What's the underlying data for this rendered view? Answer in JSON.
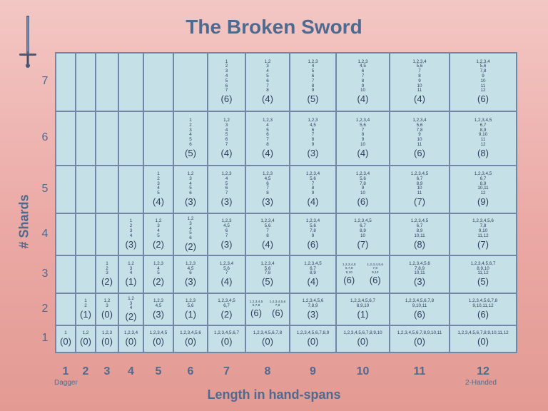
{
  "title": "The Broken Sword",
  "axis": {
    "x_title": "Length in hand-spans",
    "y_title": "# Shards",
    "x_labels": [
      "1",
      "2",
      "3",
      "4",
      "5",
      "6",
      "7",
      "8",
      "9",
      "10",
      "11",
      "12"
    ],
    "y_labels": [
      "1",
      "2",
      "3",
      "4",
      "5",
      "6",
      "7"
    ],
    "x_left_note": "Dagger",
    "x_right_note": "2-Handed"
  },
  "colors": {
    "cell": "#c5e0e7",
    "border": "#7286a6",
    "text": "#2d3f5c",
    "title": "#4f6a8f"
  },
  "icons": {
    "corner": "sword-icon"
  },
  "cells": [
    {
      "row": 1,
      "col": 1,
      "lines": "1",
      "count": "(0)"
    },
    {
      "row": 1,
      "col": 2,
      "lines": "1,2",
      "count": "(0)"
    },
    {
      "row": 1,
      "col": 3,
      "lines": "1,2,3",
      "count": "(0)"
    },
    {
      "row": 1,
      "col": 4,
      "lines": "1,2,3,4",
      "count": "(0)"
    },
    {
      "row": 1,
      "col": 5,
      "lines": "1,2,3,4,5",
      "count": "(0)"
    },
    {
      "row": 1,
      "col": 6,
      "lines": "1,2,3,4,5,6",
      "count": "(0)"
    },
    {
      "row": 1,
      "col": 7,
      "lines": "1,2,3,4,5,6,7",
      "count": "(0)"
    },
    {
      "row": 1,
      "col": 8,
      "lines": "1,2,3,4,5,6,7,8",
      "count": "(0)"
    },
    {
      "row": 1,
      "col": 9,
      "lines": "1,2,3,4,5,6,7,8,9",
      "count": "(0)"
    },
    {
      "row": 1,
      "col": 10,
      "lines": "1,2,3,4,5,6,7,8,9,10",
      "count": "(0)"
    },
    {
      "row": 1,
      "col": 11,
      "lines": "1,2,3,4,5,6,7,8,9,10,11",
      "count": "(0)"
    },
    {
      "row": 1,
      "col": 12,
      "lines": "1,2,3,4,5,6,7,8,9,10,11,12",
      "count": "(0)"
    },
    {
      "row": 2,
      "col": 2,
      "lines": "1\n2",
      "count": "(1)"
    },
    {
      "row": 2,
      "col": 3,
      "lines": "1,2\n3",
      "count": "(0)"
    },
    {
      "row": 2,
      "col": 4,
      "lines": "1,2\n3\n4",
      "count": "(2)"
    },
    {
      "row": 2,
      "col": 5,
      "lines": "1,2,3\n4,5",
      "count": "(3)"
    },
    {
      "row": 2,
      "col": 6,
      "lines": "1,2,3\n5,6",
      "count": "(1)"
    },
    {
      "row": 2,
      "col": 7,
      "lines": "1,2,3,4,5\n6,7",
      "count": "(2)"
    },
    {
      "row": 2,
      "col": 8,
      "split": [
        {
          "lines": "1,2,3,4,5\n6,7,8",
          "count": "(6)"
        },
        {
          "lines": "1,2,3,4,5,6\n7,8",
          "count": "(6)"
        }
      ]
    },
    {
      "row": 2,
      "col": 9,
      "lines": "1,2,3,4,5,6\n7,8,9",
      "count": "(3)"
    },
    {
      "row": 2,
      "col": 10,
      "lines": "1,2,3,4,5,6,7\n8,9,10",
      "count": "(1)"
    },
    {
      "row": 2,
      "col": 11,
      "lines": "1,2,3,4,5,6,7,8\n9,10,11",
      "count": "(6)"
    },
    {
      "row": 2,
      "col": 12,
      "lines": "1,2,3,4,5,6,7,8\n9,10,11,12",
      "count": "(6)"
    },
    {
      "row": 3,
      "col": 3,
      "lines": "1\n2\n3",
      "count": "(2)"
    },
    {
      "row": 3,
      "col": 4,
      "lines": "1,2\n3\n4",
      "count": "(1)"
    },
    {
      "row": 3,
      "col": 5,
      "lines": "1,2,3\n4\n5",
      "count": "(2)"
    },
    {
      "row": 3,
      "col": 6,
      "lines": "1,2,3\n4,5\n6",
      "count": "(3)"
    },
    {
      "row": 3,
      "col": 7,
      "lines": "1,2,3,4\n5,6\n7",
      "count": "(4)"
    },
    {
      "row": 3,
      "col": 8,
      "lines": "1,2,3,4\n5,6\n7,8",
      "count": "(5)"
    },
    {
      "row": 3,
      "col": 9,
      "lines": "1,2,3,4,5\n6,7\n8,9",
      "count": "(4)"
    },
    {
      "row": 3,
      "col": 10,
      "split": [
        {
          "lines": "1,2,3,4,5\n6,7,8\n9,10",
          "count": "(6)"
        },
        {
          "lines": "1,2,3,4,5,6\n7,8\n9,10",
          "count": "(6)"
        }
      ]
    },
    {
      "row": 3,
      "col": 11,
      "lines": "1,2,3,4,5,6\n7,8,9\n10,11",
      "count": "(3)"
    },
    {
      "row": 3,
      "col": 12,
      "lines": "1,2,3,4,5,6,7\n8,9,10\n11,12",
      "count": "(5)"
    },
    {
      "row": 4,
      "col": 4,
      "lines": "1\n2\n3\n4",
      "count": "(3)"
    },
    {
      "row": 4,
      "col": 5,
      "lines": "1,2\n3\n4\n5",
      "count": "(2)"
    },
    {
      "row": 4,
      "col": 6,
      "lines": "1,2\n3\n4\n5\n6",
      "count": "(2)"
    },
    {
      "row": 4,
      "col": 7,
      "lines": "1,2,3\n4,5\n6\n7",
      "count": "(3)"
    },
    {
      "row": 4,
      "col": 8,
      "lines": "1,2,3,4\n5,6\n7\n8",
      "count": "(4)"
    },
    {
      "row": 4,
      "col": 9,
      "lines": "1,2,3,4\n5,6\n7,8\n9",
      "count": "(6)"
    },
    {
      "row": 4,
      "col": 10,
      "lines": "1,2,3,4,5\n6,7\n8,9\n10",
      "count": "(7)"
    },
    {
      "row": 4,
      "col": 11,
      "lines": "1,2,3,4,5\n6,7\n8,9\n10,11",
      "count": "(8)"
    },
    {
      "row": 4,
      "col": 12,
      "lines": "1,2,3,4,5,6\n7,8\n9,10\n11,12",
      "count": "(7)"
    },
    {
      "row": 5,
      "col": 5,
      "lines": "1\n2\n3\n4\n5",
      "count": "(4)"
    },
    {
      "row": 5,
      "col": 6,
      "lines": "1,2\n3\n4\n5\n6",
      "count": "(3)"
    },
    {
      "row": 5,
      "col": 7,
      "lines": "1,2,3\n4\n5\n6\n7",
      "count": "(3)"
    },
    {
      "row": 5,
      "col": 8,
      "lines": "1,2,3\n4,5\n6\n7\n8",
      "count": "(3)"
    },
    {
      "row": 5,
      "col": 9,
      "lines": "1,2,3,4\n5,6\n7\n8\n9",
      "count": "(4)"
    },
    {
      "row": 5,
      "col": 10,
      "lines": "1,2,3,4\n5,6\n7,8\n9\n10",
      "count": "(6)"
    },
    {
      "row": 5,
      "col": 11,
      "lines": "1,2,3,4,5\n6,7\n8,9\n10\n11",
      "count": "(7)"
    },
    {
      "row": 5,
      "col": 12,
      "lines": "1,2,3,4,5\n6,7\n8,9\n10,11\n12",
      "count": "(9)"
    },
    {
      "row": 6,
      "col": 6,
      "lines": "1\n2\n3\n4\n5\n6",
      "count": "(5)"
    },
    {
      "row": 6,
      "col": 7,
      "lines": "1,2\n3\n4\n5\n6\n7",
      "count": "(4)"
    },
    {
      "row": 6,
      "col": 8,
      "lines": "1,2,3\n4\n5\n6\n7\n8",
      "count": "(4)"
    },
    {
      "row": 6,
      "col": 9,
      "lines": "1,2,3\n4,5\n6\n7\n8\n9",
      "count": "(3)"
    },
    {
      "row": 6,
      "col": 10,
      "lines": "1,2,3,4\n5,6\n7\n8\n9\n10",
      "count": "(4)"
    },
    {
      "row": 6,
      "col": 11,
      "lines": "1,2,3,4\n5,6\n7,8\n9\n10\n11",
      "count": "(6)"
    },
    {
      "row": 6,
      "col": 12,
      "lines": "1,2,3,4,5\n6,7\n8,9\n9,10\n11\n12",
      "count": "(8)"
    },
    {
      "row": 7,
      "col": 7,
      "lines": "1\n2\n3\n4\n5\n6\n7",
      "count": "(6)"
    },
    {
      "row": 7,
      "col": 8,
      "lines": "1,2\n3\n4\n5\n6\n7\n8",
      "count": "(4)"
    },
    {
      "row": 7,
      "col": 9,
      "lines": "1,2,3\n4\n5\n6\n7\n8\n9",
      "count": "(5)"
    },
    {
      "row": 7,
      "col": 10,
      "lines": "1,2,3\n4,5\n6\n7\n8\n9\n10",
      "count": "(4)"
    },
    {
      "row": 7,
      "col": 11,
      "lines": "1,2,3,4\n5,6\n7\n8\n9\n10\n11",
      "count": "(4)"
    },
    {
      "row": 7,
      "col": 12,
      "lines": "1,2,3,4\n5,6\n7,8\n9\n10\n11\n12",
      "count": "(6)"
    }
  ]
}
